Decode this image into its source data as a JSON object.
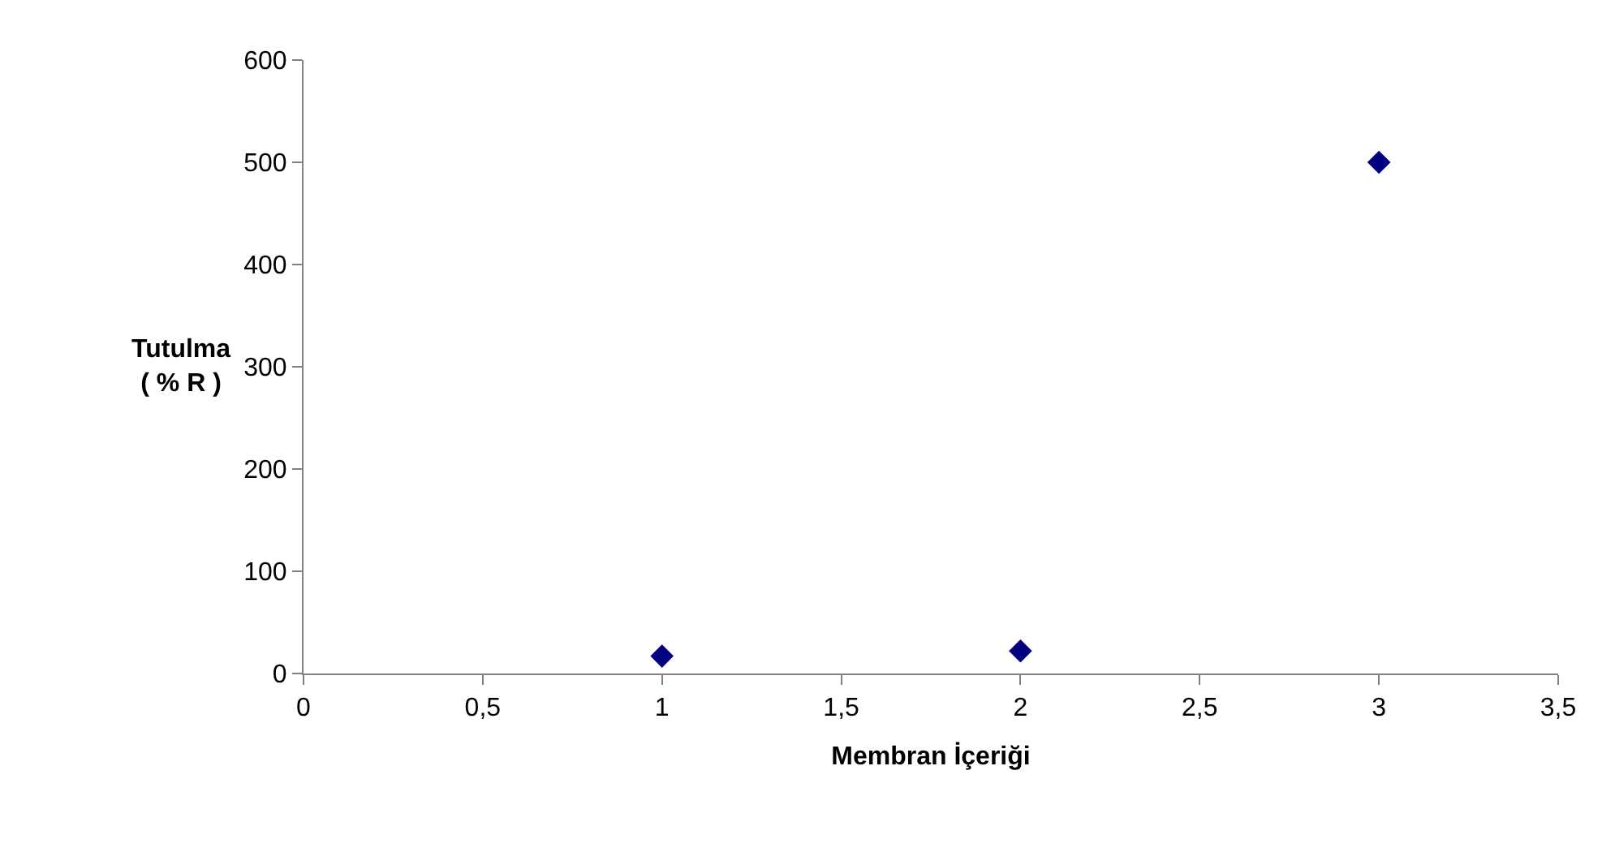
{
  "chart_data": {
    "type": "scatter",
    "xlabel": "Membran İçeriği",
    "ylabel": "Tutulma\n( % R )",
    "x": [
      1,
      2,
      3
    ],
    "series": [
      {
        "color": "#000080",
        "values": [
          17,
          22,
          500
        ]
      }
    ],
    "xlim": [
      0,
      3.5
    ],
    "xticks": [
      0,
      {
        "value": 0.5,
        "label": "0,5"
      },
      1,
      {
        "value": 1.5,
        "label": "1,5"
      },
      2,
      {
        "value": 2.5,
        "label": "2,5"
      },
      3,
      {
        "value": 3.5,
        "label": "3,5"
      }
    ],
    "ylim": [
      0,
      600
    ],
    "yticks": [
      0,
      100,
      200,
      300,
      400,
      500,
      600
    ],
    "grid": false,
    "marker": "diamond"
  }
}
